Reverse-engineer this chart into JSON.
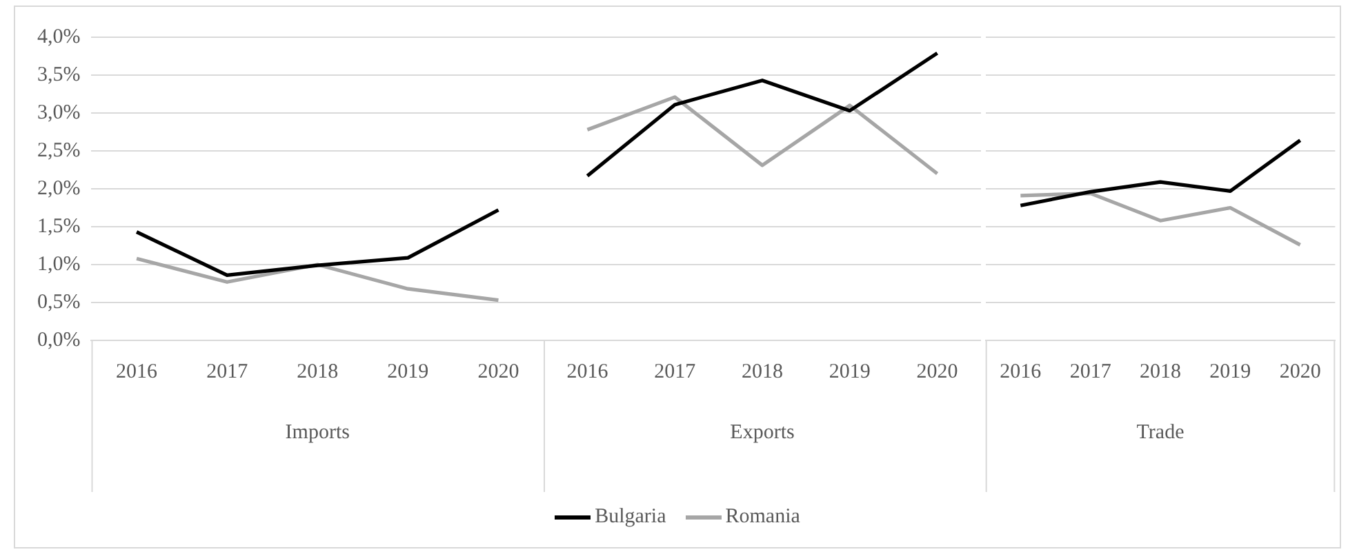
{
  "chart_data": [
    {
      "type": "line",
      "xlabel": "Imports",
      "categories": [
        "2016",
        "2017",
        "2018",
        "2019",
        "2020"
      ],
      "series": [
        {
          "color": "#000000",
          "values": [
            1.43,
            0.86,
            0.99,
            1.09,
            1.72
          ]
        },
        {
          "color": "#a6a6a6",
          "values": [
            1.08,
            0.77,
            1.0,
            0.68,
            0.53
          ]
        }
      ],
      "ylim": [
        0,
        4
      ],
      "yticks": [
        {
          "value": 0,
          "label": "0,0%"
        },
        {
          "value": 0.5,
          "label": "0,5%"
        },
        {
          "value": 1,
          "label": "1,0%"
        },
        {
          "value": 1.5,
          "label": "1,5%"
        },
        {
          "value": 2,
          "label": "2,0%"
        },
        {
          "value": 2.5,
          "label": "2,5%"
        },
        {
          "value": 3,
          "label": "3,0%"
        },
        {
          "value": 3.5,
          "label": "3,5%"
        },
        {
          "value": 4,
          "label": "4,0%"
        }
      ],
      "grid": "y",
      "marker": "none"
    },
    {
      "type": "line",
      "xlabel": "Exports",
      "categories": [
        "2016",
        "2017",
        "2018",
        "2019",
        "2020"
      ],
      "series": [
        {
          "name": "Bulgaria",
          "color": "#000000",
          "values": [
            2.17,
            3.11,
            3.43,
            3.03,
            3.79
          ]
        },
        {
          "name": "Romania",
          "color": "#a6a6a6",
          "values": [
            2.78,
            3.21,
            2.31,
            3.1,
            2.2
          ]
        }
      ],
      "ylim": [
        0,
        4
      ],
      "yticks": [
        0,
        0.5,
        1,
        1.5,
        2,
        2.5,
        3,
        3.5,
        4
      ],
      "grid": "y",
      "marker": "none",
      "legend": "bottom",
      "tick_labels": "x"
    },
    {
      "type": "line",
      "xlabel": "Trade",
      "categories": [
        "2016",
        "2017",
        "2018",
        "2019",
        "2020"
      ],
      "series": [
        {
          "color": "#000000",
          "values": [
            1.78,
            1.96,
            2.09,
            1.97,
            2.64
          ]
        },
        {
          "color": "#a6a6a6",
          "values": [
            1.91,
            1.94,
            1.58,
            1.75,
            1.26
          ]
        }
      ],
      "ylim": [
        0,
        4
      ],
      "yticks": [
        0,
        0.5,
        1,
        1.5,
        2,
        2.5,
        3,
        3.5,
        4
      ],
      "grid": "y",
      "marker": "none",
      "tick_labels": "x"
    }
  ]
}
